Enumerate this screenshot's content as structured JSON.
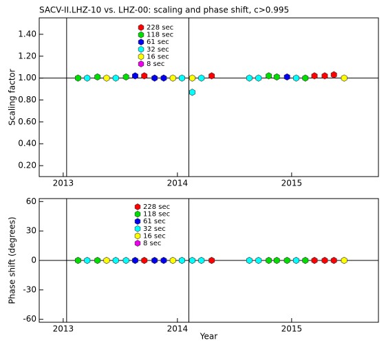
{
  "chart_data": [
    {
      "type": "scatter",
      "title": "SACV-II.LHZ-10 vs. LHZ-00: scaling and phase shift, c>0.995",
      "y_label": "Scaling factor",
      "xlim": [
        2012.79,
        2015.76
      ],
      "xticks": [
        2013,
        2014,
        2015
      ],
      "ylim": [
        0.1,
        1.55
      ],
      "yticks": [
        {
          "value": 0.2,
          "label": "0.20"
        },
        {
          "value": 0.4,
          "label": "0.40"
        },
        {
          "value": 0.6,
          "label": "0.60"
        },
        {
          "value": 0.8,
          "label": "0.80"
        },
        {
          "value": 1.0,
          "label": "1.00"
        },
        {
          "value": 1.2,
          "label": "1.20"
        },
        {
          "value": 1.4,
          "label": "1.40"
        }
      ],
      "refline": 1.0,
      "vlines": [
        2013.03,
        2014.1
      ],
      "series": [
        {
          "name": "228 sec",
          "color": "#ff0000",
          "x": [
            2013.71,
            2014.3,
            2015.2,
            2015.29,
            2015.37
          ],
          "values": [
            1.02,
            1.02,
            1.02,
            1.02,
            1.03
          ]
        },
        {
          "name": "118 sec",
          "color": "#00dd00",
          "x": [
            2013.13,
            2013.3,
            2013.55,
            2014.8,
            2014.87,
            2015.12
          ],
          "values": [
            1.0,
            1.01,
            1.01,
            1.02,
            1.01,
            1.0
          ]
        },
        {
          "name": "61 sec",
          "color": "#0000ee",
          "x": [
            2013.63,
            2013.8,
            2013.88,
            2014.96
          ],
          "values": [
            1.02,
            1.0,
            1.0,
            1.01
          ]
        },
        {
          "name": "32 sec",
          "color": "#00ffff",
          "x": [
            2013.21,
            2013.46,
            2014.04,
            2014.13,
            2014.21,
            2014.63,
            2014.71,
            2015.04
          ],
          "values": [
            1.0,
            1.0,
            1.0,
            0.87,
            1.0,
            1.0,
            1.0,
            1.0
          ]
        },
        {
          "name": "16 sec",
          "color": "#ffff00",
          "x": [
            2013.38,
            2013.96,
            2014.13,
            2015.46
          ],
          "values": [
            1.0,
            1.0,
            1.0,
            1.0
          ]
        },
        {
          "name": "8 sec",
          "color": "#ee00ee",
          "x": [],
          "values": []
        }
      ]
    },
    {
      "type": "scatter",
      "y_label": "Phase shift (degrees)",
      "x_label": "Year",
      "xlim": [
        2012.79,
        2015.76
      ],
      "xticks": [
        2013,
        2014,
        2015
      ],
      "ylim": [
        -63,
        63
      ],
      "yticks": [
        -60,
        -30,
        0,
        30,
        60
      ],
      "refline": 0,
      "vlines": [
        2013.03,
        2014.1
      ],
      "series": [
        {
          "name": "228 sec",
          "color": "#ff0000",
          "x": [
            2013.71,
            2014.3,
            2015.2,
            2015.29,
            2015.37
          ],
          "values": [
            0,
            0,
            0,
            0,
            0
          ]
        },
        {
          "name": "118 sec",
          "color": "#00dd00",
          "x": [
            2013.13,
            2013.3,
            2014.8,
            2014.87,
            2014.96,
            2015.12
          ],
          "values": [
            0,
            0,
            0,
            0,
            0,
            0
          ]
        },
        {
          "name": "61 sec",
          "color": "#0000ee",
          "x": [
            2013.63,
            2013.8,
            2013.88
          ],
          "values": [
            0,
            0,
            0
          ]
        },
        {
          "name": "32 sec",
          "color": "#00ffff",
          "x": [
            2013.21,
            2013.46,
            2013.55,
            2014.04,
            2014.13,
            2014.21,
            2014.63,
            2014.71,
            2015.04
          ],
          "values": [
            0,
            0,
            0,
            0,
            0,
            0,
            0,
            0,
            0
          ]
        },
        {
          "name": "16 sec",
          "color": "#ffff00",
          "x": [
            2013.38,
            2013.96,
            2015.46
          ],
          "values": [
            0,
            0,
            0
          ]
        },
        {
          "name": "8 sec",
          "color": "#ee00ee",
          "x": [],
          "values": []
        }
      ]
    }
  ]
}
